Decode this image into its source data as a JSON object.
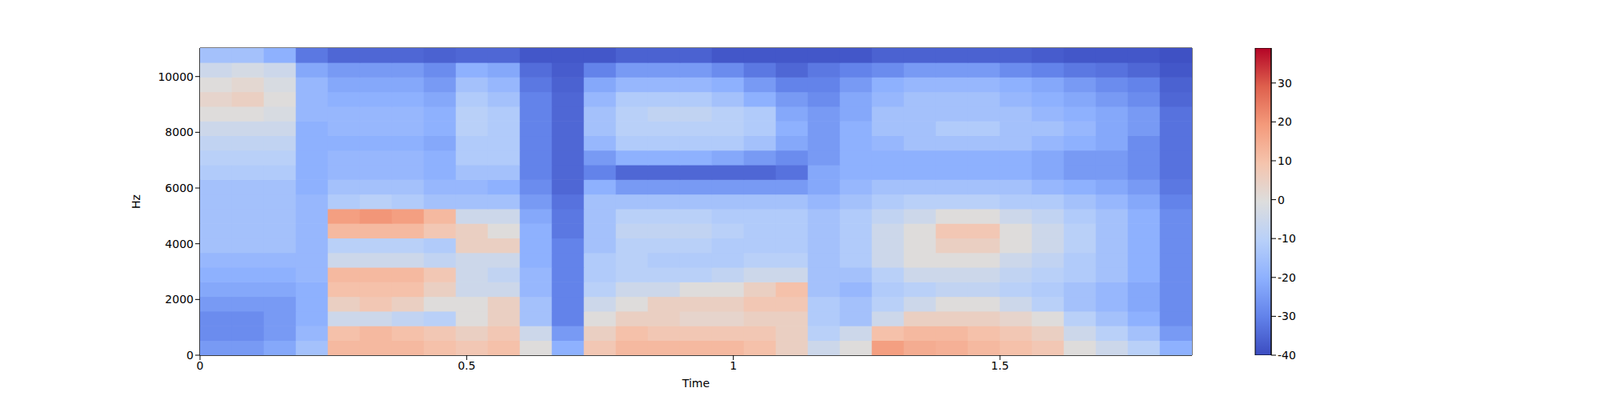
{
  "chart_data": {
    "type": "heatmap",
    "x_label": "Time",
    "y_label": "Hz",
    "xlim": [
      0,
      1.86
    ],
    "xticks": [
      0,
      0.5,
      1,
      1.5
    ],
    "ylim": [
      0,
      11025
    ],
    "yticks": [
      0,
      2000,
      4000,
      6000,
      8000,
      10000
    ],
    "x": [
      0.03,
      0.09,
      0.15,
      0.21,
      0.27,
      0.33,
      0.39,
      0.45,
      0.51,
      0.57,
      0.63,
      0.69,
      0.75,
      0.81,
      0.87,
      0.93,
      0.99,
      1.05,
      1.11,
      1.17,
      1.23,
      1.29,
      1.35,
      1.41,
      1.47,
      1.53,
      1.59,
      1.65,
      1.71,
      1.77,
      1.83
    ],
    "y": [
      262.5,
      787.5,
      1312.5,
      1837.5,
      2362.5,
      2887.5,
      3412.5,
      3937.5,
      4462.5,
      4987.5,
      5512.5,
      6037.5,
      6562.5,
      7087.5,
      7612.5,
      8137.5,
      8662.5,
      9187.5,
      9712.5,
      10237.5,
      10762.5
    ],
    "cells": [
      [
        -25,
        -25,
        -22,
        -15,
        12,
        12,
        12,
        10,
        8,
        10,
        0,
        -20,
        8,
        12,
        12,
        12,
        12,
        10,
        5,
        -5,
        0,
        18,
        15,
        14,
        12,
        10,
        8,
        0,
        -5,
        -10,
        -20
      ],
      [
        -28,
        -28,
        -25,
        -18,
        10,
        12,
        10,
        8,
        5,
        8,
        -5,
        -25,
        5,
        10,
        8,
        8,
        8,
        8,
        5,
        -10,
        -5,
        10,
        12,
        12,
        10,
        8,
        5,
        -5,
        -10,
        -15,
        -25
      ],
      [
        -28,
        -28,
        -25,
        -20,
        -5,
        -5,
        -8,
        -10,
        0,
        5,
        -15,
        -30,
        0,
        5,
        5,
        3,
        3,
        5,
        5,
        -12,
        -15,
        -5,
        5,
        5,
        5,
        3,
        0,
        -10,
        -15,
        -20,
        -28
      ],
      [
        -25,
        -25,
        -25,
        -20,
        5,
        8,
        5,
        0,
        0,
        5,
        -15,
        -30,
        -5,
        0,
        5,
        5,
        5,
        8,
        8,
        -12,
        -15,
        -10,
        -5,
        0,
        0,
        -5,
        -10,
        -15,
        -18,
        -22,
        -28
      ],
      [
        -22,
        -22,
        -22,
        -20,
        10,
        10,
        10,
        5,
        -5,
        -5,
        -18,
        -30,
        -10,
        -5,
        -5,
        0,
        0,
        5,
        10,
        -15,
        -18,
        -12,
        -10,
        -8,
        -8,
        -10,
        -12,
        -15,
        -18,
        -22,
        -28
      ],
      [
        -20,
        -20,
        -20,
        -18,
        12,
        12,
        12,
        8,
        -5,
        -8,
        -18,
        -30,
        -12,
        -10,
        -10,
        -10,
        -8,
        -5,
        -5,
        -15,
        -15,
        -10,
        -5,
        -5,
        -5,
        -8,
        -10,
        -12,
        -15,
        -20,
        -28
      ],
      [
        -18,
        -18,
        -18,
        -18,
        -5,
        -5,
        -5,
        -8,
        -5,
        -5,
        -20,
        -30,
        -12,
        -10,
        -12,
        -12,
        -12,
        -10,
        -10,
        -15,
        -12,
        -5,
        0,
        0,
        0,
        -5,
        -8,
        -12,
        -15,
        -20,
        -28
      ],
      [
        -15,
        -15,
        -15,
        -18,
        -10,
        -10,
        -10,
        -12,
        5,
        5,
        -20,
        -30,
        -15,
        -10,
        -10,
        -10,
        -12,
        -12,
        -12,
        -15,
        -12,
        -5,
        0,
        5,
        5,
        0,
        -5,
        -10,
        -15,
        -20,
        -28
      ],
      [
        -15,
        -15,
        -15,
        -18,
        12,
        12,
        12,
        8,
        5,
        0,
        -20,
        -32,
        -15,
        -8,
        -8,
        -8,
        -10,
        -12,
        -12,
        -15,
        -12,
        -5,
        0,
        8,
        8,
        0,
        -5,
        -10,
        -15,
        -20,
        -28
      ],
      [
        -15,
        -15,
        -15,
        -18,
        18,
        20,
        18,
        12,
        -5,
        -5,
        -22,
        -32,
        -15,
        -10,
        -10,
        -10,
        -12,
        -12,
        -12,
        -15,
        -12,
        -8,
        -5,
        0,
        0,
        -5,
        -8,
        -12,
        -15,
        -20,
        -28
      ],
      [
        -15,
        -15,
        -15,
        -18,
        -12,
        -10,
        -12,
        -15,
        -15,
        -15,
        -25,
        -33,
        -15,
        -15,
        -15,
        -15,
        -15,
        -15,
        -15,
        -18,
        -15,
        -12,
        -10,
        -10,
        -10,
        -12,
        -12,
        -15,
        -18,
        -22,
        -30
      ],
      [
        -15,
        -15,
        -15,
        -20,
        -15,
        -15,
        -15,
        -18,
        -18,
        -20,
        -28,
        -35,
        -20,
        -25,
        -25,
        -25,
        -25,
        -25,
        -25,
        -22,
        -18,
        -15,
        -15,
        -15,
        -15,
        -15,
        -18,
        -20,
        -22,
        -25,
        -32
      ],
      [
        -12,
        -12,
        -12,
        -20,
        -18,
        -18,
        -18,
        -20,
        -15,
        -15,
        -30,
        -35,
        -30,
        -35,
        -35,
        -35,
        -35,
        -35,
        -33,
        -22,
        -20,
        -20,
        -20,
        -20,
        -20,
        -20,
        -22,
        -25,
        -25,
        -28,
        -33
      ],
      [
        -10,
        -10,
        -10,
        -20,
        -18,
        -18,
        -18,
        -20,
        -12,
        -12,
        -30,
        -35,
        -25,
        -20,
        -20,
        -20,
        -22,
        -25,
        -28,
        -25,
        -20,
        -20,
        -20,
        -20,
        -20,
        -20,
        -22,
        -25,
        -25,
        -28,
        -33
      ],
      [
        -8,
        -8,
        -8,
        -20,
        -20,
        -20,
        -20,
        -22,
        -12,
        -12,
        -30,
        -35,
        -18,
        -12,
        -12,
        -12,
        -12,
        -15,
        -22,
        -25,
        -20,
        -18,
        -15,
        -15,
        -15,
        -15,
        -18,
        -20,
        -22,
        -28,
        -33
      ],
      [
        -5,
        -5,
        -5,
        -20,
        -18,
        -18,
        -18,
        -20,
        -10,
        -12,
        -30,
        -35,
        -15,
        -10,
        -10,
        -10,
        -10,
        -12,
        -20,
        -25,
        -20,
        -15,
        -15,
        -12,
        -12,
        -15,
        -15,
        -18,
        -22,
        -25,
        -33
      ],
      [
        0,
        0,
        -2,
        -18,
        -18,
        -18,
        -18,
        -20,
        -10,
        -12,
        -30,
        -35,
        -15,
        -10,
        -8,
        -8,
        -10,
        -12,
        -22,
        -25,
        -22,
        -15,
        -15,
        -15,
        -15,
        -15,
        -18,
        -20,
        -22,
        -25,
        -33
      ],
      [
        3,
        5,
        0,
        -18,
        -20,
        -20,
        -20,
        -22,
        -12,
        -15,
        -30,
        -35,
        -18,
        -12,
        -12,
        -12,
        -15,
        -20,
        -25,
        -28,
        -22,
        -18,
        -15,
        -15,
        -15,
        -18,
        -20,
        -22,
        -25,
        -28,
        -35
      ],
      [
        0,
        2,
        -2,
        -18,
        -22,
        -22,
        -22,
        -25,
        -15,
        -18,
        -32,
        -36,
        -22,
        -18,
        -18,
        -18,
        -20,
        -25,
        -30,
        -30,
        -25,
        -20,
        -18,
        -18,
        -18,
        -20,
        -22,
        -25,
        -28,
        -30,
        -36
      ],
      [
        -5,
        -3,
        -5,
        -22,
        -25,
        -25,
        -25,
        -28,
        -20,
        -22,
        -34,
        -37,
        -30,
        -25,
        -25,
        -25,
        -28,
        -32,
        -35,
        -32,
        -30,
        -28,
        -25,
        -25,
        -25,
        -28,
        -30,
        -32,
        -33,
        -35,
        -38
      ],
      [
        -15,
        -15,
        -20,
        -32,
        -35,
        -35,
        -35,
        -36,
        -35,
        -35,
        -38,
        -38,
        -38,
        -36,
        -36,
        -36,
        -38,
        -38,
        -38,
        -38,
        -38,
        -36,
        -36,
        -36,
        -36,
        -36,
        -37,
        -38,
        -38,
        -38,
        -39
      ]
    ],
    "colorbar": {
      "range": [
        -40,
        39
      ],
      "ticks": [
        -40,
        -30,
        -20,
        -10,
        0,
        10,
        20,
        30
      ]
    }
  }
}
